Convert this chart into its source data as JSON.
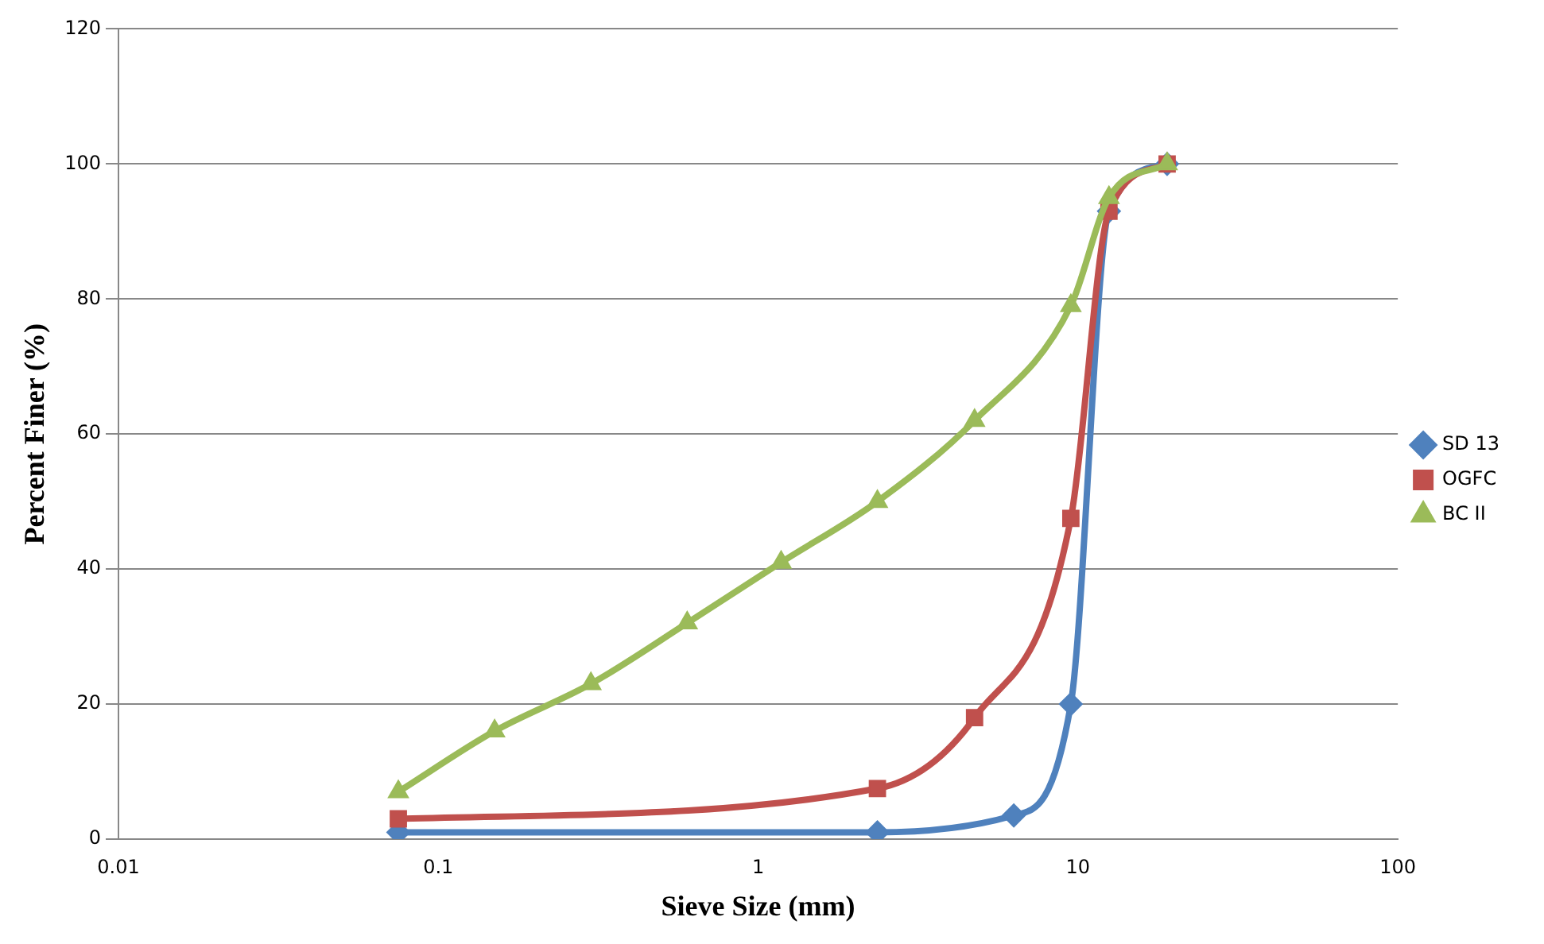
{
  "chart_data": {
    "type": "line",
    "xlabel": "Sieve Size (mm)",
    "ylabel": "Percent Finer (%)",
    "log": "x",
    "xlim": [
      0.01,
      100
    ],
    "xticks": [
      0.01,
      0.1,
      1,
      10,
      100
    ],
    "ylim": [
      0,
      120
    ],
    "yticks": [
      0,
      20,
      40,
      60,
      80,
      100,
      120
    ],
    "grid": "y",
    "legend": "right",
    "series": [
      {
        "name": "SD 13",
        "color": "#4f81bd",
        "marker": "diamond",
        "x": [
          0.075,
          2.36,
          6.3,
          9.5,
          12.5,
          19
        ],
        "values": [
          1,
          1,
          3.5,
          20,
          93,
          100
        ]
      },
      {
        "name": "OGFC",
        "color": "#c0504d",
        "marker": "square",
        "x": [
          0.075,
          2.36,
          4.75,
          9.5,
          12.5,
          19
        ],
        "values": [
          3,
          7.5,
          18,
          47.5,
          93,
          100
        ]
      },
      {
        "name": "BC II",
        "color": "#9bbb59",
        "marker": "triangle",
        "x": [
          0.075,
          0.15,
          0.3,
          0.6,
          1.18,
          2.36,
          4.75,
          9.5,
          12.5,
          19
        ],
        "values": [
          7,
          16,
          23,
          32,
          41,
          50,
          62,
          79,
          95,
          100
        ]
      }
    ]
  }
}
